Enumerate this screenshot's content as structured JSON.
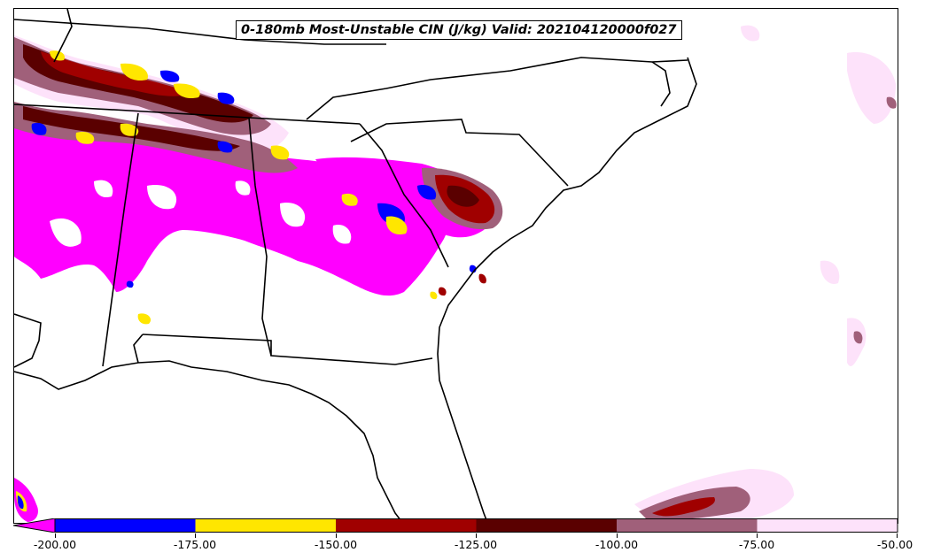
{
  "map": {
    "title": "0-180mb Most-Unstable CIN (J/kg) Valid: 202104120000f027",
    "variable": "Most-Unstable CIN",
    "units": "J/kg",
    "layer": "0-180mb",
    "valid": "202104120000f027"
  },
  "colorbar": {
    "ticks": [
      "-200.00",
      "-175.00",
      "-150.00",
      "-125.00",
      "-100.00",
      "-75.00",
      "-50.00"
    ],
    "colors": {
      "below_min": "#ff00ff",
      "bin_1": "#0000ff",
      "bin_2": "#ffe600",
      "bin_3": "#a00000",
      "bin_4": "#5a0000",
      "bin_5": "#a0607a",
      "bin_6": "#fde2fa"
    }
  }
}
